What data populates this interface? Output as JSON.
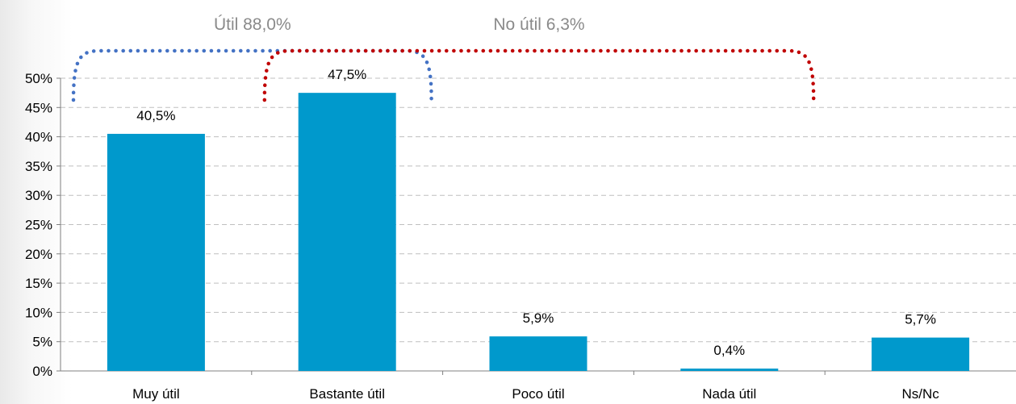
{
  "chart_data": {
    "type": "bar",
    "categories": [
      "Muy útil",
      "Bastante útil",
      "Poco útil",
      "Nada útil",
      "Ns/Nc"
    ],
    "values": [
      40.5,
      47.5,
      5.9,
      0.4,
      5.7
    ],
    "data_labels": [
      "40,5%",
      "47,5%",
      "5,9%",
      "0,4%",
      "5,7%"
    ],
    "ylim": [
      0,
      50
    ],
    "yticks": [
      0,
      5,
      10,
      15,
      20,
      25,
      30,
      35,
      40,
      45,
      50
    ],
    "ytick_labels": [
      "0%",
      "5%",
      "10%",
      "15%",
      "20%",
      "25%",
      "30%",
      "35%",
      "40%",
      "45%",
      "50%"
    ],
    "grid": true,
    "bar_color": "#0099cc",
    "groups": [
      {
        "label": "Útil 88,0%",
        "from": 0,
        "to": 1,
        "color": "#4472c4"
      },
      {
        "label": "No útil 6,3%",
        "from": 1,
        "to": 3,
        "color": "#c00000"
      }
    ]
  }
}
